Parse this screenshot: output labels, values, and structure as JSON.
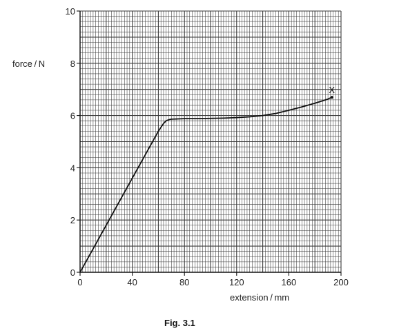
{
  "chart_data": {
    "type": "line",
    "xlabel": "extension / mm",
    "ylabel": "force / N",
    "caption": "Fig. 3.1",
    "xlim": [
      0,
      200
    ],
    "ylim": [
      0,
      10
    ],
    "x_ticks": [
      0,
      40,
      80,
      120,
      160,
      200
    ],
    "y_ticks": [
      0,
      2,
      4,
      6,
      8,
      10
    ],
    "x_tick_labels": [
      "0",
      "40",
      "80",
      "120",
      "160",
      "200"
    ],
    "y_tick_labels": [
      "0",
      "2",
      "4",
      "6",
      "8",
      "10"
    ],
    "grid": true,
    "series": [
      {
        "x": [
          0,
          10,
          20,
          30,
          40,
          50,
          60,
          64,
          66,
          68,
          70,
          75,
          80,
          90,
          100,
          110,
          120,
          130,
          140,
          150,
          160,
          170,
          180,
          190,
          193
        ],
        "y": [
          0,
          0.9,
          1.8,
          2.7,
          3.6,
          4.5,
          5.4,
          5.7,
          5.8,
          5.84,
          5.86,
          5.87,
          5.88,
          5.88,
          5.89,
          5.9,
          5.92,
          5.95,
          6.0,
          6.08,
          6.2,
          6.33,
          6.47,
          6.63,
          6.7
        ]
      }
    ],
    "annotations": [
      {
        "text": "X",
        "x": 193,
        "y": 6.7
      }
    ],
    "colors": {
      "grid": "#3a3a3a",
      "line": "#111111",
      "text": "#222222"
    }
  }
}
